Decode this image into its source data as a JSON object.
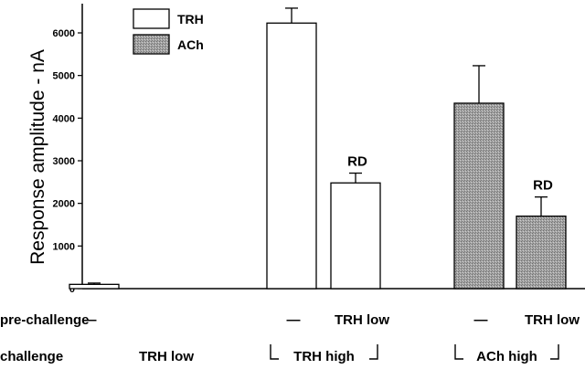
{
  "chart_data": {
    "type": "bar",
    "ylabel": "Response amplitude - nA",
    "ylim": [
      0,
      6600
    ],
    "yticks": [
      0,
      1000,
      2000,
      3000,
      4000,
      5000,
      6000
    ],
    "grid": false,
    "legend_position": "top-left",
    "series": [
      {
        "name": "TRH",
        "color": "#ffffff",
        "pattern": "none"
      },
      {
        "name": "ACh",
        "color": "#9a9a9a",
        "pattern": "stipple"
      }
    ],
    "bars": [
      {
        "series": "TRH",
        "value": 100,
        "error": 30,
        "annotation": ""
      },
      {
        "series": "TRH",
        "value": 6230,
        "error": 350,
        "annotation": ""
      },
      {
        "series": "TRH",
        "value": 2480,
        "error": 230,
        "annotation": "RD"
      },
      {
        "series": "ACh",
        "value": 4350,
        "error": 880,
        "annotation": ""
      },
      {
        "series": "ACh",
        "value": 1700,
        "error": 450,
        "annotation": "RD"
      }
    ],
    "row_labels": {
      "pre_challenge": "pre-challenge",
      "challenge": "challenge"
    },
    "pre_challenge": [
      "—",
      "—",
      "TRH low",
      "—",
      "TRH low"
    ],
    "challenge_groups": [
      "TRH low",
      "TRH high",
      "ACh high"
    ]
  }
}
